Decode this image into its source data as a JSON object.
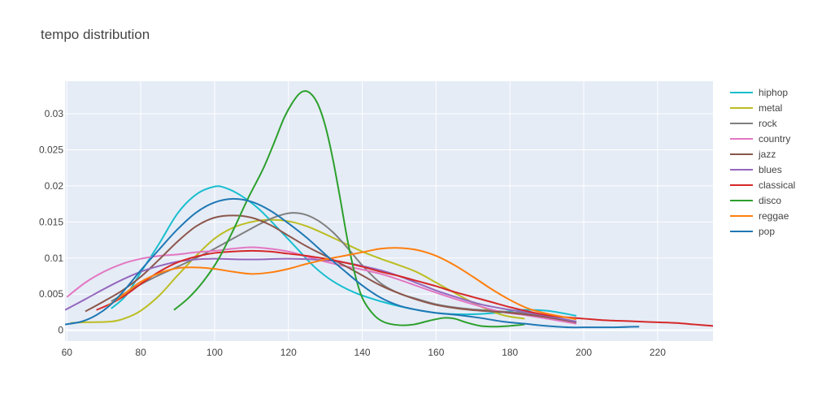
{
  "chart_data": {
    "type": "line",
    "title": "tempo distribution",
    "xlabel": "",
    "ylabel": "",
    "xlim": [
      59.5,
      235
    ],
    "ylim": [
      -0.0015,
      0.0345
    ],
    "x_ticks": [
      60,
      80,
      100,
      120,
      140,
      160,
      180,
      200,
      220
    ],
    "y_ticks": [
      0,
      0.005,
      0.01,
      0.015,
      0.02,
      0.025,
      0.03
    ],
    "y_tick_labels": [
      "0",
      "0.005",
      "0.01",
      "0.015",
      "0.02",
      "0.025",
      "0.03"
    ],
    "grid": true,
    "legend_position": "right",
    "plot_background": "#e5ecf6",
    "series": [
      {
        "name": "hiphop",
        "color": "#17becf",
        "points": [
          [
            72,
            0.003
          ],
          [
            76,
            0.0048
          ],
          [
            80,
            0.008
          ],
          [
            85,
            0.012
          ],
          [
            90,
            0.0162
          ],
          [
            95,
            0.0188
          ],
          [
            100,
            0.0199
          ],
          [
            103,
            0.0197
          ],
          [
            107,
            0.0187
          ],
          [
            112,
            0.0168
          ],
          [
            117,
            0.0142
          ],
          [
            122,
            0.0115
          ],
          [
            127,
            0.0088
          ],
          [
            132,
            0.0068
          ],
          [
            138,
            0.0052
          ],
          [
            145,
            0.004
          ],
          [
            152,
            0.0031
          ],
          [
            160,
            0.0024
          ],
          [
            168,
            0.0022
          ],
          [
            176,
            0.0024
          ],
          [
            183,
            0.0028
          ],
          [
            190,
            0.0027
          ],
          [
            198,
            0.002
          ]
        ]
      },
      {
        "name": "metal",
        "color": "#bcbd22",
        "points": [
          [
            61,
            0.001
          ],
          [
            65,
            0.0011
          ],
          [
            72,
            0.0012
          ],
          [
            76,
            0.0017
          ],
          [
            80,
            0.0027
          ],
          [
            85,
            0.0048
          ],
          [
            90,
            0.0076
          ],
          [
            95,
            0.0103
          ],
          [
            100,
            0.0127
          ],
          [
            105,
            0.0142
          ],
          [
            110,
            0.015
          ],
          [
            115,
            0.0153
          ],
          [
            120,
            0.0151
          ],
          [
            125,
            0.0144
          ],
          [
            130,
            0.0133
          ],
          [
            135,
            0.0121
          ],
          [
            140,
            0.0109
          ],
          [
            145,
            0.0099
          ],
          [
            150,
            0.009
          ],
          [
            155,
            0.008
          ],
          [
            160,
            0.0066
          ],
          [
            166,
            0.0049
          ],
          [
            172,
            0.0033
          ],
          [
            178,
            0.0021
          ],
          [
            184,
            0.0016
          ]
        ]
      },
      {
        "name": "rock",
        "color": "#7f7f7f",
        "points": [
          [
            72,
            0.004
          ],
          [
            78,
            0.0058
          ],
          [
            84,
            0.0074
          ],
          [
            90,
            0.0088
          ],
          [
            95,
            0.01
          ],
          [
            100,
            0.0113
          ],
          [
            105,
            0.0127
          ],
          [
            110,
            0.0141
          ],
          [
            115,
            0.0154
          ],
          [
            120,
            0.0162
          ],
          [
            124,
            0.0161
          ],
          [
            128,
            0.0152
          ],
          [
            132,
            0.0136
          ],
          [
            136,
            0.0114
          ],
          [
            140,
            0.009
          ],
          [
            145,
            0.0065
          ],
          [
            150,
            0.0051
          ],
          [
            155,
            0.0043
          ],
          [
            160,
            0.0036
          ],
          [
            166,
            0.0031
          ],
          [
            172,
            0.0028
          ],
          [
            178,
            0.0026
          ],
          [
            184,
            0.0023
          ],
          [
            190,
            0.0018
          ],
          [
            198,
            0.0012
          ]
        ]
      },
      {
        "name": "country",
        "color": "#e377c2",
        "points": [
          [
            60,
            0.0046
          ],
          [
            65,
            0.0066
          ],
          [
            70,
            0.0081
          ],
          [
            75,
            0.0092
          ],
          [
            80,
            0.0099
          ],
          [
            85,
            0.0103
          ],
          [
            90,
            0.0105
          ],
          [
            95,
            0.0108
          ],
          [
            100,
            0.011
          ],
          [
            105,
            0.0113
          ],
          [
            110,
            0.0115
          ],
          [
            115,
            0.0113
          ],
          [
            120,
            0.0109
          ],
          [
            125,
            0.0102
          ],
          [
            130,
            0.0095
          ],
          [
            135,
            0.0089
          ],
          [
            140,
            0.0084
          ],
          [
            145,
            0.0078
          ],
          [
            150,
            0.007
          ],
          [
            155,
            0.0061
          ],
          [
            160,
            0.0052
          ],
          [
            166,
            0.0042
          ],
          [
            172,
            0.0033
          ],
          [
            178,
            0.0025
          ],
          [
            184,
            0.0021
          ],
          [
            190,
            0.0016
          ],
          [
            198,
            0.0009
          ]
        ]
      },
      {
        "name": "jazz",
        "color": "#8c564b",
        "points": [
          [
            65,
            0.0026
          ],
          [
            70,
            0.004
          ],
          [
            75,
            0.0055
          ],
          [
            80,
            0.0074
          ],
          [
            85,
            0.0098
          ],
          [
            90,
            0.0123
          ],
          [
            95,
            0.0144
          ],
          [
            100,
            0.0156
          ],
          [
            105,
            0.0159
          ],
          [
            110,
            0.0156
          ],
          [
            115,
            0.0146
          ],
          [
            120,
            0.0131
          ],
          [
            125,
            0.0116
          ],
          [
            130,
            0.0103
          ],
          [
            135,
            0.009
          ],
          [
            140,
            0.0076
          ],
          [
            145,
            0.0062
          ],
          [
            150,
            0.0051
          ],
          [
            155,
            0.0042
          ],
          [
            160,
            0.0035
          ],
          [
            166,
            0.003
          ],
          [
            172,
            0.0027
          ],
          [
            178,
            0.0025
          ],
          [
            184,
            0.0022
          ],
          [
            190,
            0.0018
          ],
          [
            198,
            0.0011
          ]
        ]
      },
      {
        "name": "blues",
        "color": "#9467bd",
        "points": [
          [
            59.5,
            0.0028
          ],
          [
            65,
            0.0043
          ],
          [
            70,
            0.0057
          ],
          [
            75,
            0.007
          ],
          [
            80,
            0.0081
          ],
          [
            85,
            0.0089
          ],
          [
            90,
            0.0095
          ],
          [
            95,
            0.0098
          ],
          [
            100,
            0.0099
          ],
          [
            110,
            0.0098
          ],
          [
            120,
            0.0099
          ],
          [
            130,
            0.0097
          ],
          [
            135,
            0.0094
          ],
          [
            140,
            0.0089
          ],
          [
            145,
            0.0083
          ],
          [
            150,
            0.0075
          ],
          [
            155,
            0.0065
          ],
          [
            160,
            0.0055
          ],
          [
            166,
            0.0045
          ],
          [
            172,
            0.0036
          ],
          [
            178,
            0.003
          ],
          [
            184,
            0.0025
          ],
          [
            190,
            0.002
          ],
          [
            198,
            0.0012
          ]
        ]
      },
      {
        "name": "classical",
        "color": "#d62728",
        "points": [
          [
            68,
            0.0028
          ],
          [
            72,
            0.0037
          ],
          [
            76,
            0.0049
          ],
          [
            80,
            0.0064
          ],
          [
            85,
            0.0081
          ],
          [
            90,
            0.0094
          ],
          [
            95,
            0.0102
          ],
          [
            100,
            0.0107
          ],
          [
            105,
            0.0109
          ],
          [
            110,
            0.011
          ],
          [
            115,
            0.0109
          ],
          [
            120,
            0.0106
          ],
          [
            125,
            0.0103
          ],
          [
            130,
            0.0099
          ],
          [
            135,
            0.0094
          ],
          [
            140,
            0.0088
          ],
          [
            145,
            0.0081
          ],
          [
            150,
            0.0075
          ],
          [
            155,
            0.0068
          ],
          [
            160,
            0.0061
          ],
          [
            165,
            0.0053
          ],
          [
            170,
            0.0046
          ],
          [
            175,
            0.0039
          ],
          [
            180,
            0.0032
          ],
          [
            185,
            0.0026
          ],
          [
            190,
            0.0021
          ],
          [
            195,
            0.0018
          ],
          [
            200,
            0.0016
          ],
          [
            205,
            0.0014
          ],
          [
            210,
            0.0013
          ],
          [
            215,
            0.0012
          ],
          [
            220,
            0.0011
          ],
          [
            225,
            0.001
          ],
          [
            230,
            0.0008
          ],
          [
            235,
            0.0006
          ]
        ]
      },
      {
        "name": "disco",
        "color": "#2ca02c",
        "points": [
          [
            89,
            0.0028
          ],
          [
            93,
            0.0045
          ],
          [
            97,
            0.0068
          ],
          [
            101,
            0.0098
          ],
          [
            105,
            0.0138
          ],
          [
            109,
            0.0182
          ],
          [
            113,
            0.0222
          ],
          [
            116,
            0.0258
          ],
          [
            119,
            0.0296
          ],
          [
            122,
            0.0322
          ],
          [
            124,
            0.0331
          ],
          [
            126,
            0.0328
          ],
          [
            128,
            0.0313
          ],
          [
            130,
            0.0283
          ],
          [
            132,
            0.0238
          ],
          [
            134,
            0.0183
          ],
          [
            136,
            0.0125
          ],
          [
            138,
            0.0078
          ],
          [
            140,
            0.0045
          ],
          [
            143,
            0.0022
          ],
          [
            146,
            0.0011
          ],
          [
            150,
            0.0007
          ],
          [
            154,
            0.0008
          ],
          [
            158,
            0.0013
          ],
          [
            162,
            0.0017
          ],
          [
            165,
            0.0016
          ],
          [
            168,
            0.0011
          ],
          [
            172,
            0.0006
          ],
          [
            176,
            0.0005
          ],
          [
            180,
            0.0006
          ],
          [
            184,
            0.0008
          ]
        ]
      },
      {
        "name": "reggae",
        "color": "#ff7f0e",
        "points": [
          [
            71,
            0.0033
          ],
          [
            76,
            0.0052
          ],
          [
            80,
            0.0067
          ],
          [
            85,
            0.0079
          ],
          [
            90,
            0.0086
          ],
          [
            95,
            0.0087
          ],
          [
            100,
            0.0085
          ],
          [
            105,
            0.0081
          ],
          [
            110,
            0.0078
          ],
          [
            115,
            0.008
          ],
          [
            120,
            0.0085
          ],
          [
            125,
            0.0092
          ],
          [
            130,
            0.0098
          ],
          [
            135,
            0.0103
          ],
          [
            140,
            0.0108
          ],
          [
            145,
            0.0113
          ],
          [
            150,
            0.0114
          ],
          [
            155,
            0.0111
          ],
          [
            160,
            0.0103
          ],
          [
            165,
            0.009
          ],
          [
            170,
            0.0074
          ],
          [
            175,
            0.0057
          ],
          [
            180,
            0.0042
          ],
          [
            185,
            0.003
          ],
          [
            190,
            0.0023
          ],
          [
            195,
            0.0018
          ],
          [
            198,
            0.0015
          ]
        ]
      },
      {
        "name": "pop",
        "color": "#1f77b4",
        "points": [
          [
            59.5,
            0.0008
          ],
          [
            64,
            0.0012
          ],
          [
            68,
            0.0021
          ],
          [
            72,
            0.0036
          ],
          [
            76,
            0.0058
          ],
          [
            80,
            0.0083
          ],
          [
            85,
            0.0112
          ],
          [
            90,
            0.014
          ],
          [
            95,
            0.0163
          ],
          [
            100,
            0.0177
          ],
          [
            105,
            0.0182
          ],
          [
            110,
            0.0178
          ],
          [
            115,
            0.0166
          ],
          [
            120,
            0.0148
          ],
          [
            125,
            0.0128
          ],
          [
            130,
            0.0105
          ],
          [
            135,
            0.0083
          ],
          [
            140,
            0.0062
          ],
          [
            145,
            0.0045
          ],
          [
            150,
            0.0034
          ],
          [
            155,
            0.0028
          ],
          [
            160,
            0.0024
          ],
          [
            166,
            0.0021
          ],
          [
            172,
            0.0017
          ],
          [
            178,
            0.0012
          ],
          [
            184,
            0.0009
          ],
          [
            190,
            0.0006
          ],
          [
            196,
            0.0004
          ],
          [
            202,
            0.0004
          ],
          [
            208,
            0.0004
          ],
          [
            215,
            0.0005
          ]
        ]
      }
    ]
  }
}
